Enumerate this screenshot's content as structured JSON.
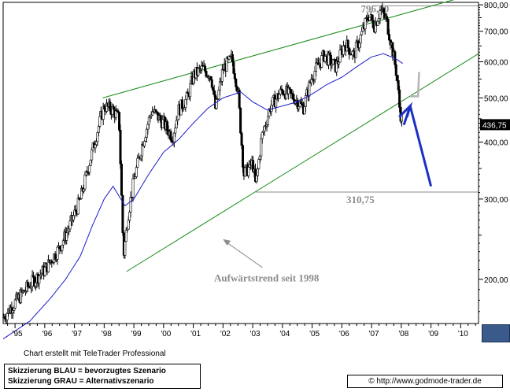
{
  "chart_data": {
    "type": "candlestick",
    "title": "",
    "xlabel": "",
    "ylabel": "",
    "y_scale": "log",
    "ylim": [
      160,
      810
    ],
    "xlim": [
      1994.6,
      2010.6
    ],
    "grid": false,
    "x_tick_labels": [
      "'95",
      "'96",
      "'97",
      "'98",
      "'99",
      "'00",
      "'01",
      "'02",
      "'03",
      "'04",
      "'05",
      "'06",
      "'07",
      "'08",
      "'09",
      "'10"
    ],
    "x_tick_positions": [
      1995,
      1996,
      1997,
      1998,
      1999,
      2000,
      2001,
      2002,
      2003,
      2004,
      2005,
      2006,
      2007,
      2008,
      2009,
      2010
    ],
    "y_tick_labels": [
      "800,00",
      "700,00",
      "600,00",
      "500,00",
      "400,00",
      "300,00",
      "200,00"
    ],
    "y_tick_values": [
      800,
      700,
      600,
      500,
      400,
      300,
      200
    ],
    "price_series": [
      {
        "x": 1994.6,
        "y": 165
      },
      {
        "x": 1995.0,
        "y": 178
      },
      {
        "x": 1995.5,
        "y": 195
      },
      {
        "x": 1996.0,
        "y": 210
      },
      {
        "x": 1996.5,
        "y": 235
      },
      {
        "x": 1996.8,
        "y": 258
      },
      {
        "x": 1997.2,
        "y": 300
      },
      {
        "x": 1997.5,
        "y": 360
      },
      {
        "x": 1997.8,
        "y": 430
      },
      {
        "x": 1998.0,
        "y": 480
      },
      {
        "x": 1998.3,
        "y": 470
      },
      {
        "x": 1998.5,
        "y": 450
      },
      {
        "x": 1998.65,
        "y": 225
      },
      {
        "x": 1998.8,
        "y": 275
      },
      {
        "x": 1999.0,
        "y": 330
      },
      {
        "x": 1999.3,
        "y": 400
      },
      {
        "x": 1999.6,
        "y": 470
      },
      {
        "x": 2000.0,
        "y": 440
      },
      {
        "x": 2000.3,
        "y": 410
      },
      {
        "x": 2000.5,
        "y": 470
      },
      {
        "x": 2000.8,
        "y": 500
      },
      {
        "x": 2001.0,
        "y": 560
      },
      {
        "x": 2001.3,
        "y": 580
      },
      {
        "x": 2001.6,
        "y": 560
      },
      {
        "x": 2001.75,
        "y": 470
      },
      {
        "x": 2002.0,
        "y": 580
      },
      {
        "x": 2002.3,
        "y": 610
      },
      {
        "x": 2002.5,
        "y": 520
      },
      {
        "x": 2002.7,
        "y": 340
      },
      {
        "x": 2003.0,
        "y": 360
      },
      {
        "x": 2003.1,
        "y": 320
      },
      {
        "x": 2003.3,
        "y": 410
      },
      {
        "x": 2003.6,
        "y": 480
      },
      {
        "x": 2004.0,
        "y": 520
      },
      {
        "x": 2004.4,
        "y": 500
      },
      {
        "x": 2004.7,
        "y": 475
      },
      {
        "x": 2005.0,
        "y": 560
      },
      {
        "x": 2005.4,
        "y": 620
      },
      {
        "x": 2005.8,
        "y": 585
      },
      {
        "x": 2006.1,
        "y": 660
      },
      {
        "x": 2006.4,
        "y": 620
      },
      {
        "x": 2006.7,
        "y": 700
      },
      {
        "x": 2006.9,
        "y": 760
      },
      {
        "x": 2007.1,
        "y": 720
      },
      {
        "x": 2007.3,
        "y": 780
      },
      {
        "x": 2007.5,
        "y": 740
      },
      {
        "x": 2007.7,
        "y": 640
      },
      {
        "x": 2007.85,
        "y": 560
      },
      {
        "x": 2007.95,
        "y": 470
      },
      {
        "x": 2008.05,
        "y": 436.75
      }
    ],
    "moving_average": [
      {
        "x": 1994.6,
        "y": 148
      },
      {
        "x": 1995.5,
        "y": 162
      },
      {
        "x": 1996.2,
        "y": 182
      },
      {
        "x": 1996.7,
        "y": 200
      },
      {
        "x": 1997.2,
        "y": 225
      },
      {
        "x": 1997.6,
        "y": 262
      },
      {
        "x": 1998.0,
        "y": 300
      },
      {
        "x": 1998.3,
        "y": 320
      },
      {
        "x": 1998.7,
        "y": 290
      },
      {
        "x": 1999.0,
        "y": 300
      },
      {
        "x": 1999.5,
        "y": 340
      },
      {
        "x": 2000.0,
        "y": 380
      },
      {
        "x": 2000.5,
        "y": 405
      },
      {
        "x": 2001.0,
        "y": 440
      },
      {
        "x": 2001.5,
        "y": 475
      },
      {
        "x": 2002.0,
        "y": 500
      },
      {
        "x": 2002.6,
        "y": 515
      },
      {
        "x": 2003.0,
        "y": 490
      },
      {
        "x": 2003.5,
        "y": 470
      },
      {
        "x": 2004.0,
        "y": 480
      },
      {
        "x": 2004.5,
        "y": 490
      },
      {
        "x": 2005.0,
        "y": 510
      },
      {
        "x": 2005.5,
        "y": 535
      },
      {
        "x": 2006.0,
        "y": 555
      },
      {
        "x": 2006.5,
        "y": 585
      },
      {
        "x": 2007.0,
        "y": 615
      },
      {
        "x": 2007.4,
        "y": 625
      },
      {
        "x": 2007.8,
        "y": 610
      },
      {
        "x": 2008.05,
        "y": 595
      }
    ],
    "trend_channel": {
      "upper": [
        {
          "x": 1997.95,
          "y": 500
        },
        {
          "x": 2010.6,
          "y": 850
        }
      ],
      "lower": [
        {
          "x": 1998.75,
          "y": 208
        },
        {
          "x": 2010.6,
          "y": 625
        }
      ]
    },
    "horizontal_levels": [
      {
        "label": "796,00",
        "y": 796
      },
      {
        "label": "310,75",
        "y": 310.75
      }
    ],
    "scenario_arrows": {
      "blue": {
        "from": {
          "x": 2008.3,
          "y": 480
        },
        "to": {
          "x": 2009.0,
          "y": 320
        },
        "color": "#1c2fc4"
      },
      "gray": {
        "from": {
          "x": 2008.3,
          "y": 500
        },
        "to": {
          "x": 2008.6,
          "y": 570
        },
        "color": "#b4b4b4"
      }
    },
    "annotations": [
      {
        "text": "Aufwärtstrend seit 1998",
        "arrow_to": {
          "x": 2002.0,
          "y": 245
        }
      }
    ],
    "last_price_label": "436,75",
    "colors": {
      "candles": "#000000",
      "moving_average": "#1a1acc",
      "channel": "#1a8c1a",
      "levels": "#8c8c8c",
      "last_price_badge": "#000000"
    }
  },
  "footer": {
    "credit": "Chart erstellt mit TeleTrader Professional",
    "legend": {
      "blue": "Skizzierung BLAU = bevorzugtes Szenario",
      "gray": "Skizzierung GRAU = Alternativszenario"
    },
    "website": "© http://www.godmode-trader.de"
  }
}
